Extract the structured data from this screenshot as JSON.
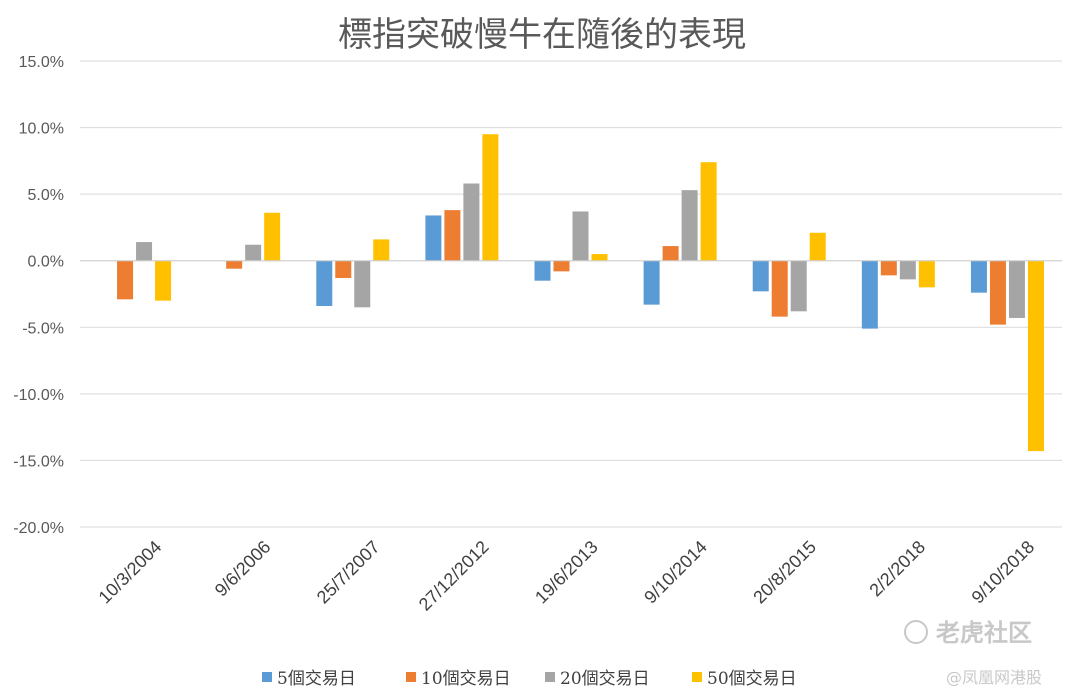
{
  "chart_data": {
    "type": "bar",
    "title": "標指突破慢牛在隨後的表現",
    "categories": [
      "10/3/2004",
      "9/6/2006",
      "25/7/2007",
      "27/12/2012",
      "19/6/2013",
      "9/10/2014",
      "20/8/2015",
      "2/2/2018",
      "9/10/2018"
    ],
    "series": [
      {
        "name": "5個交易日",
        "color": "#5B9BD5",
        "values": [
          0.0,
          0.0,
          -3.4,
          3.4,
          -1.5,
          -3.3,
          -2.3,
          -5.1,
          -2.4
        ]
      },
      {
        "name": "10個交易日",
        "color": "#ED7D31",
        "values": [
          -2.9,
          -0.6,
          -1.3,
          3.8,
          -0.8,
          1.1,
          -4.2,
          -1.1,
          -4.8
        ]
      },
      {
        "name": "20個交易日",
        "color": "#A5A5A5",
        "values": [
          1.4,
          1.2,
          -3.5,
          5.8,
          3.7,
          5.3,
          -3.8,
          -1.4,
          -4.3
        ]
      },
      {
        "name": "50個交易日",
        "color": "#FFC000",
        "values": [
          -3.0,
          3.6,
          1.6,
          9.5,
          0.5,
          7.4,
          2.1,
          -2.0,
          -14.3
        ]
      }
    ],
    "ylim": [
      -20,
      15
    ],
    "yticks": [
      15,
      10,
      5,
      0,
      -5,
      -10,
      -15,
      -20
    ],
    "ytick_labels": [
      "15.0%",
      "10.0%",
      "5.0%",
      "0.0%",
      "-5.0%",
      "-10.0%",
      "-15.0%",
      "-20.0%"
    ],
    "grid": true,
    "legend_position": "bottom",
    "xlabel": "",
    "ylabel": ""
  },
  "watermarks": {
    "line1": "老虎社区",
    "line2": "@凤凰网港股"
  }
}
